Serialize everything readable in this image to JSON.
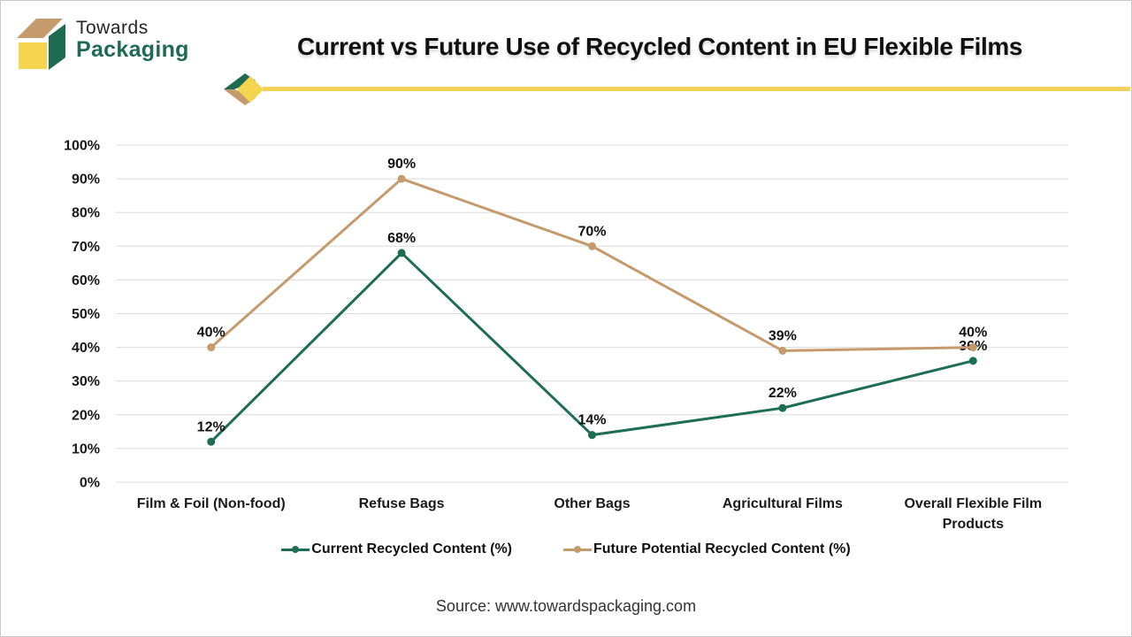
{
  "logo": {
    "line1": "Towards",
    "line2": "Packaging"
  },
  "header": {
    "title": "Current vs Future Use of Recycled Content in EU Flexible Films"
  },
  "chart_data": {
    "type": "line",
    "title": "Current vs Future Use of Recycled Content in EU Flexible Films",
    "categories": [
      "Film & Foil (Non-food)",
      "Refuse Bags",
      "Other Bags",
      "Agricultural Films",
      "Overall Flexible Film\nProducts"
    ],
    "series": [
      {
        "name": "Current Recycled Content (%)",
        "color": "#1E6E54",
        "values": [
          12,
          68,
          14,
          22,
          36
        ]
      },
      {
        "name": "Future Potential Recycled Content (%)",
        "color": "#C59B6D",
        "values": [
          40,
          90,
          70,
          39,
          40
        ]
      }
    ],
    "xlabel": "",
    "ylabel": "",
    "ylim": [
      0,
      100
    ],
    "ytick_step": 10,
    "ytick_suffix": "%",
    "grid": true,
    "markers": true,
    "data_labels": true,
    "data_label_suffix": "%",
    "legend_position": "bottom"
  },
  "footer": {
    "source": "Source: www.towardspackaging.com"
  },
  "colors": {
    "brand_green": "#1E6B52",
    "brand_tan": "#C59B6D",
    "brand_yellow": "#F6D54E",
    "rule_yellow": "#F3D158",
    "gridline": "#DCDCDC"
  }
}
